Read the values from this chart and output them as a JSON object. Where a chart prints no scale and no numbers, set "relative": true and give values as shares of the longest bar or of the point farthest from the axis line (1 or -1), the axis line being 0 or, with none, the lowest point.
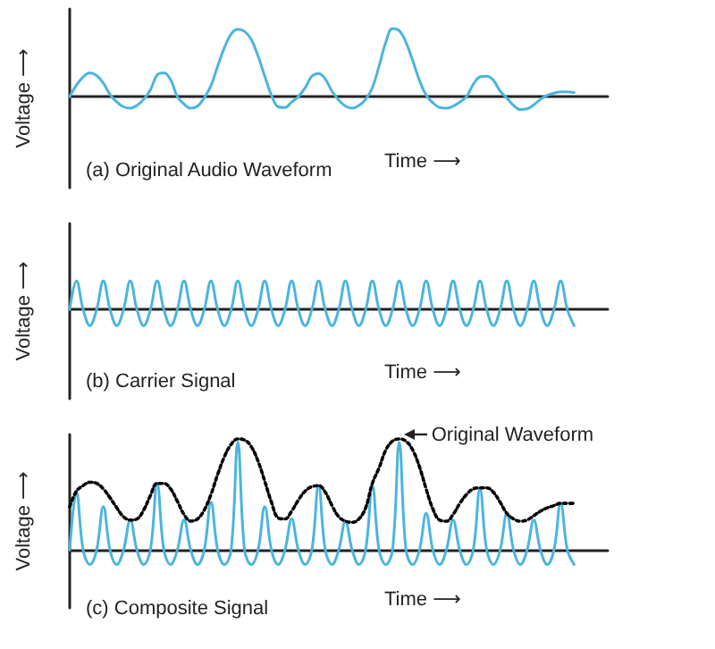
{
  "chart_data": [
    {
      "type": "line",
      "relative": true,
      "title": "(a) Original Audio Waveform",
      "xlabel": "Time ⟶",
      "ylabel": "Voltage ⟶",
      "tick_labels": false,
      "line_style": "solid",
      "categories": [
        null,
        null,
        null,
        null,
        null,
        null,
        null,
        null,
        null,
        null,
        null,
        null,
        null,
        null,
        null,
        null,
        null,
        null,
        null,
        null,
        null,
        null,
        null,
        null,
        null,
        null,
        null,
        null,
        null,
        null,
        null,
        null,
        null,
        null,
        null,
        null,
        null,
        null,
        null,
        null,
        null,
        null,
        null,
        null,
        null,
        null,
        null,
        null,
        null,
        null,
        null,
        null,
        null,
        null,
        null,
        null,
        null,
        null,
        null,
        null,
        null,
        null,
        null,
        null,
        null,
        null,
        null,
        null,
        null,
        null,
        null,
        null,
        null,
        null,
        null,
        null,
        null,
        null,
        null,
        null,
        null
      ],
      "series": [
        {
          "color": "#4bb4de",
          "values": [
            0,
            0.17,
            0.29,
            0.35,
            0.31,
            0.2,
            0.03,
            -0.08,
            -0.15,
            -0.17,
            -0.13,
            -0.04,
            0.1,
            0.32,
            0.35,
            0.25,
            0,
            -0.11,
            -0.17,
            -0.14,
            -0.02,
            0.16,
            0.45,
            0.72,
            0.92,
            0.99,
            0.96,
            0.84,
            0.6,
            0.3,
            0.02,
            -0.15,
            -0.16,
            -0.08,
            0,
            0.13,
            0.3,
            0.34,
            0.26,
            0.08,
            -0.05,
            -0.14,
            -0.17,
            -0.13,
            -0.04,
            0.13,
            0.45,
            0.8,
            1,
            0.97,
            0.8,
            0.53,
            0.24,
            0.02,
            -0.09,
            -0.16,
            -0.17,
            -0.14,
            -0.08,
            0,
            0.18,
            0.29,
            0.3,
            0.24,
            0.08,
            -0.02,
            -0.13,
            -0.19,
            -0.18,
            -0.12,
            -0.04,
            0.02,
            0.05,
            0.07,
            0.07,
            0.06,
            null,
            null,
            null,
            null,
            null
          ]
        }
      ]
    },
    {
      "type": "line",
      "relative": true,
      "title": "(b) Carrier Signal",
      "xlabel": "Time ⟶",
      "ylabel": "Voltage ⟶",
      "tick_labels": false,
      "line_style": "solid",
      "categories": [
        null,
        null,
        null,
        null,
        null,
        null,
        null,
        null,
        null,
        null,
        null,
        null,
        null,
        null,
        null,
        null,
        null,
        null,
        null,
        null,
        null,
        null,
        null,
        null,
        null,
        null,
        null,
        null,
        null,
        null,
        null,
        null,
        null,
        null,
        null,
        null,
        null,
        null,
        null,
        null,
        null,
        null,
        null,
        null,
        null,
        null,
        null,
        null,
        null,
        null,
        null,
        null,
        null,
        null,
        null,
        null,
        null,
        null,
        null,
        null,
        null,
        null,
        null,
        null,
        null,
        null,
        null,
        null,
        null,
        null,
        null,
        null,
        null,
        null,
        null,
        null,
        null,
        null,
        null,
        null,
        null
      ],
      "series": [
        {
          "color": "#4bb4de",
          "values": [
            0,
            1,
            0,
            -0.56,
            0,
            1,
            0,
            -0.56,
            0,
            1,
            0,
            -0.56,
            0,
            1,
            0,
            -0.56,
            0,
            1,
            0,
            -0.56,
            0,
            1,
            0,
            -0.56,
            0,
            1,
            0,
            -0.56,
            0,
            1,
            0,
            -0.56,
            0,
            1,
            0,
            -0.56,
            0,
            1,
            0,
            -0.56,
            0,
            1,
            0,
            -0.56,
            0,
            1,
            0,
            -0.56,
            0,
            1,
            0,
            -0.56,
            0,
            1,
            0,
            -0.56,
            0,
            1,
            0,
            -0.56,
            0,
            1,
            0,
            -0.56,
            0,
            1,
            0,
            -0.56,
            0,
            1,
            0,
            -0.56,
            0,
            1,
            0,
            -0.56,
            null,
            null,
            null,
            null,
            null
          ]
        }
      ]
    },
    {
      "type": "line",
      "relative": true,
      "title": "(c) Composite Signal",
      "xlabel": "Time ⟶",
      "ylabel": "Voltage ⟶",
      "tick_labels": false,
      "line_style": "solid",
      "annotations": [
        "Original Waveform"
      ],
      "categories": [
        null,
        null,
        null,
        null,
        null,
        null,
        null,
        null,
        null,
        null,
        null,
        null,
        null,
        null,
        null,
        null,
        null,
        null,
        null,
        null,
        null,
        null,
        null,
        null,
        null,
        null,
        null,
        null,
        null,
        null,
        null,
        null,
        null,
        null,
        null,
        null,
        null,
        null,
        null,
        null,
        null,
        null,
        null,
        null,
        null,
        null,
        null,
        null,
        null,
        null,
        null,
        null,
        null,
        null,
        null,
        null,
        null,
        null,
        null,
        null,
        null,
        null,
        null,
        null,
        null,
        null,
        null,
        null,
        null,
        null,
        null,
        null,
        null,
        null,
        null,
        null,
        null,
        null,
        null,
        null,
        null
      ],
      "series": [
        {
          "color": "#4bb4de",
          "values": [
            0,
            0.52,
            0,
            -0.13,
            0,
            0.39,
            0,
            -0.13,
            0,
            0.27,
            0,
            -0.13,
            0,
            0.6,
            0,
            -0.13,
            0,
            0.27,
            0,
            -0.13,
            0,
            0.43,
            0,
            -0.13,
            0,
            0.97,
            0,
            -0.13,
            0,
            0.39,
            0,
            -0.13,
            0,
            0.28,
            0,
            -0.13,
            0,
            0.58,
            0,
            -0.13,
            0,
            0.26,
            0,
            -0.13,
            0,
            0.58,
            0,
            -0.13,
            0,
            0.97,
            0,
            -0.13,
            0,
            0.33,
            0,
            -0.13,
            0,
            0.27,
            0,
            -0.13,
            0,
            0.55,
            0,
            -0.13,
            0,
            0.33,
            0,
            -0.13,
            0,
            0.27,
            0,
            -0.13,
            0,
            0.42,
            0,
            -0.13,
            null,
            null,
            null,
            null,
            null
          ]
        },
        {
          "color": "#000000",
          "line_style": "dotted",
          "values": [
            0.39,
            0.53,
            0.58,
            0.61,
            0.6,
            0.55,
            0.47,
            0.38,
            0.3,
            0.27,
            0.28,
            0.36,
            0.49,
            0.6,
            0.6,
            0.55,
            0.44,
            0.32,
            0.26,
            0.28,
            0.36,
            0.5,
            0.68,
            0.84,
            0.95,
            1,
            0.99,
            0.93,
            0.8,
            0.62,
            0.43,
            0.29,
            0.28,
            0.35,
            0.45,
            0.53,
            0.57,
            0.58,
            0.52,
            0.4,
            0.3,
            0.26,
            0.25,
            0.28,
            0.38,
            0.6,
            0.74,
            0.9,
            0.98,
            1,
            0.98,
            0.9,
            0.75,
            0.55,
            0.37,
            0.27,
            0.26,
            0.32,
            0.42,
            0.5,
            0.55,
            0.56,
            0.56,
            0.52,
            0.43,
            0.33,
            0.28,
            0.26,
            0.27,
            0.31,
            0.35,
            0.38,
            0.4,
            0.42,
            0.42,
            0.42,
            null,
            null,
            null,
            null,
            null
          ]
        }
      ]
    }
  ]
}
